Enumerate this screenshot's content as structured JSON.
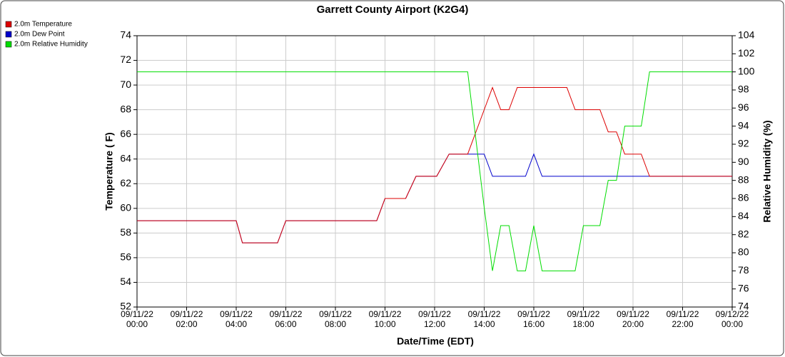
{
  "chart_data": {
    "type": "line",
    "title": "Garrett County Airport (K2G4)",
    "x_label": "Date/Time (EDT)",
    "y_label": "Temperature ( F)",
    "y2_label": "Relative Humidity (%)",
    "x": [
      "09/11/22 00:00",
      "09/11/22 04:00",
      "09/11/22 04:15",
      "09/11/22 05:40",
      "09/11/22 06:00",
      "09/11/22 09:40",
      "09/11/22 10:00",
      "09/11/22 10:50",
      "09/11/22 11:15",
      "09/11/22 12:05",
      "09/11/22 12:35",
      "09/11/22 13:20",
      "09/11/22 14:00",
      "09/11/22 14:20",
      "09/11/22 14:40",
      "09/11/22 15:00",
      "09/11/22 15:20",
      "09/11/22 15:40",
      "09/11/22 16:00",
      "09/11/22 16:20",
      "09/11/22 17:20",
      "09/11/22 17:40",
      "09/11/22 18:00",
      "09/11/22 18:40",
      "09/11/22 19:00",
      "09/11/22 19:20",
      "09/11/22 19:40",
      "09/11/22 20:20",
      "09/11/22 20:40",
      "09/12/22 00:00"
    ],
    "series": [
      {
        "name": "2.0m Dew Point",
        "color": "#0000cc",
        "values": [
          59,
          59,
          57.2,
          57.2,
          59,
          59,
          60.8,
          60.8,
          62.6,
          62.6,
          64.4,
          64.4,
          64.4,
          62.6,
          62.6,
          62.6,
          62.6,
          62.6,
          64.4,
          62.6,
          62.6,
          62.6,
          62.6,
          62.6,
          62.6,
          62.6,
          62.6,
          62.6,
          62.6,
          62.6
        ]
      },
      {
        "name": "2.0m Temperature",
        "color": "#dd0000",
        "values": [
          59,
          59,
          57.2,
          57.2,
          59,
          59,
          60.8,
          60.8,
          62.6,
          62.6,
          64.4,
          64.4,
          68,
          69.8,
          68,
          68,
          69.8,
          69.8,
          69.8,
          69.8,
          69.8,
          68,
          68,
          68,
          66.2,
          66.2,
          64.4,
          64.4,
          62.6,
          62.6
        ]
      },
      {
        "name": "2.0m Relative Humidity",
        "color": "#00dd00",
        "axis": "y2",
        "values": [
          100,
          100,
          100,
          100,
          100,
          100,
          100,
          100,
          100,
          100,
          100,
          100,
          85,
          78,
          83,
          83,
          78,
          78,
          83,
          78,
          78,
          78,
          83,
          83,
          88,
          88,
          94,
          94,
          100,
          100
        ]
      }
    ],
    "legend_order": [
      1,
      0,
      2
    ],
    "xlim": [
      "09/11/22 00:00",
      "09/12/22 00:00"
    ],
    "xticks": [
      "09/11/22 00:00",
      "09/11/22 02:00",
      "09/11/22 04:00",
      "09/11/22 06:00",
      "09/11/22 08:00",
      "09/11/22 10:00",
      "09/11/22 12:00",
      "09/11/22 14:00",
      "09/11/22 16:00",
      "09/11/22 18:00",
      "09/11/22 20:00",
      "09/11/22 22:00",
      "09/12/22 00:00"
    ],
    "ylim": [
      52,
      74
    ],
    "yticks": [
      52,
      54,
      56,
      58,
      60,
      62,
      64,
      66,
      68,
      70,
      72,
      74
    ],
    "y2lim": [
      74,
      104
    ],
    "y2ticks": [
      74,
      76,
      78,
      80,
      82,
      84,
      86,
      88,
      90,
      92,
      94,
      96,
      98,
      100,
      102,
      104
    ],
    "grid": true,
    "legend": "top-left"
  }
}
